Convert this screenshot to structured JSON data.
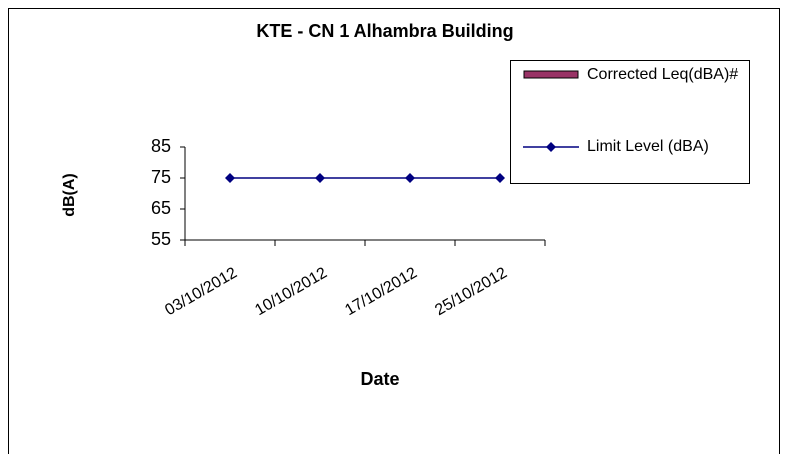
{
  "chart_data": {
    "type": "line",
    "title": "KTE - CN 1 Alhambra Building",
    "x_label": "Date",
    "y_label": "dB(A)",
    "categories": [
      "03/10/2012",
      "10/10/2012",
      "17/10/2012",
      "25/10/2012"
    ],
    "series": [
      {
        "name": "Corrected Leq(dBA)#",
        "type": "bar",
        "color": "#993366",
        "values": [
          null,
          null,
          null,
          null
        ]
      },
      {
        "name": "Limit Level (dBA)",
        "type": "line",
        "color": "#000080",
        "values": [
          75,
          75,
          75,
          75
        ]
      }
    ],
    "ylim": [
      55,
      85
    ],
    "yticks": [
      55,
      65,
      75,
      85
    ],
    "grid": false,
    "legend": "upper right"
  }
}
